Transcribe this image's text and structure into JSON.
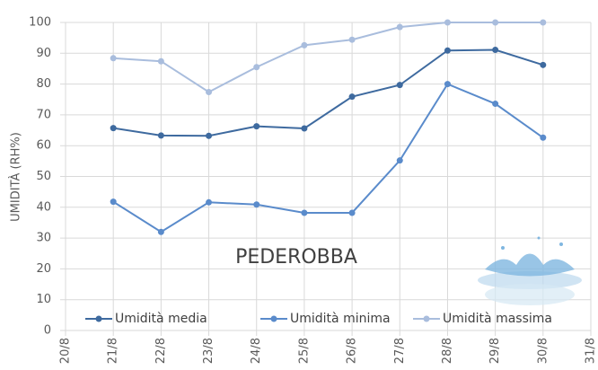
{
  "chart_data": {
    "type": "line",
    "y_label": "UMIDITÀ (RH%)",
    "annotation": "PEDEROBBA",
    "categories": [
      "20/8",
      "21/8",
      "22/8",
      "23/8",
      "24/8",
      "25/8",
      "26/8",
      "27/8",
      "28/8",
      "29/8",
      "30/8",
      "31/8"
    ],
    "series": [
      {
        "name": "Umidità media",
        "color": "#3e6a9f",
        "values": [
          null,
          65.7,
          63.3,
          63.2,
          66.3,
          65.6,
          75.9,
          79.7,
          90.9,
          91.1,
          86.2,
          null
        ]
      },
      {
        "name": "Umidità minima",
        "color": "#5a8bcb",
        "values": [
          null,
          41.8,
          32.0,
          41.6,
          40.9,
          38.2,
          38.2,
          55.2,
          80.0,
          73.6,
          62.6,
          null
        ]
      },
      {
        "name": "Umidità massima",
        "color": "#a9bddd",
        "values": [
          null,
          88.4,
          87.4,
          77.4,
          85.5,
          92.6,
          94.4,
          98.5,
          100,
          100,
          100,
          null
        ]
      }
    ],
    "ylim": [
      0,
      100
    ],
    "yticks": [
      0,
      10,
      20,
      30,
      40,
      50,
      60,
      70,
      80,
      90,
      100
    ],
    "grid": true,
    "legend": "bottom"
  }
}
